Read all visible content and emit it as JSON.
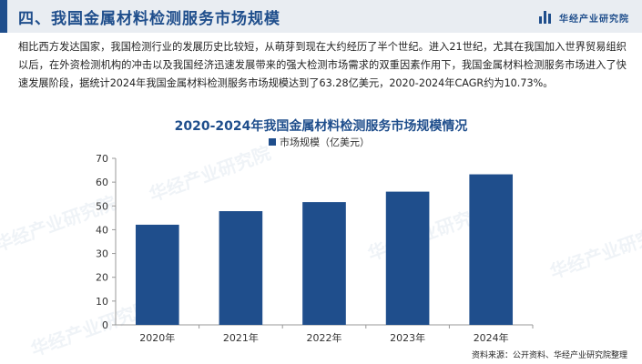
{
  "header": {
    "title": "四、我国金属材料检测服务市场规模",
    "brand": "华经产业研究院"
  },
  "intro_text": "相比西方发达国家，我国检测行业的发展历史比较短，从萌芽到现在大约经历了半个世纪。进入21世纪，尤其在我国加入世界贸易组织以后，在外资检测机构的冲击以及我国经济迅速发展带来的强大检测市场需求的双重因素作用下，我国金属材料检测服务市场进入了快速发展阶段，据统计2024年我国金属材料检测服务市场规模达到了63.28亿美元，2020-2024年CAGR约为10.73%。",
  "watermark": "华经产业研究院",
  "source": "资料来源：公开资料、华经产业研究院整理",
  "colors": {
    "accent": "#1f4e8c",
    "header_bg": "#e9edf2"
  },
  "chart_data": {
    "type": "bar",
    "title": "2020-2024年我国金属材料检测服务市场规模情况",
    "categories": [
      "2020年",
      "2021年",
      "2022年",
      "2023年",
      "2024年"
    ],
    "series": [
      {
        "name": "市场规模（亿美元）",
        "values": [
          42.1,
          47.8,
          51.6,
          56.0,
          63.28
        ],
        "color": "#1f4e8c"
      }
    ],
    "yticks": [
      0,
      10,
      20,
      30,
      40,
      50,
      60,
      70
    ],
    "ylim": [
      0,
      70
    ],
    "legend_position": "top-center",
    "grid": false
  }
}
